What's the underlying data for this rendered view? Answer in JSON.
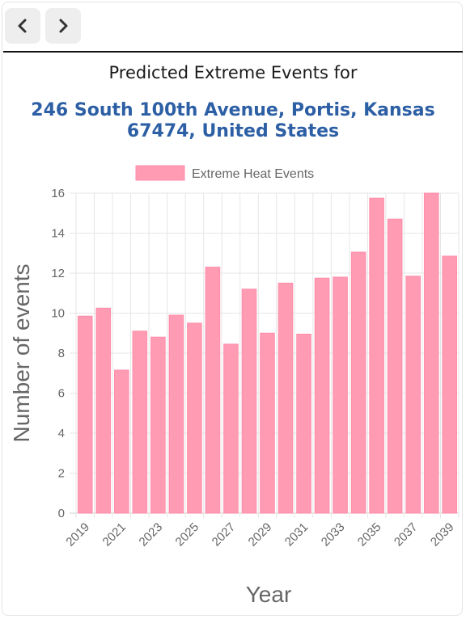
{
  "header": {
    "title": "Predicted Extreme Events for",
    "address": "246 South 100th Avenue, Portis, Kansas 67474, United States"
  },
  "icons": {
    "back": "chevron-left-icon",
    "forward": "chevron-right-icon"
  },
  "colors": {
    "bar_fill": "#ff9bb3",
    "bar_stroke": "#ff8eab",
    "address": "#2d5fa5"
  },
  "chart_data": {
    "type": "bar",
    "legend": "Extreme Heat Events",
    "legend_position": "top",
    "xlabel": "Year",
    "ylabel": "Number of events",
    "ylim": [
      0,
      16
    ],
    "yticks": [
      0,
      2,
      4,
      6,
      8,
      10,
      12,
      14,
      16
    ],
    "grid": true,
    "categories": [
      "2019",
      "2020",
      "2021",
      "2022",
      "2023",
      "2024",
      "2025",
      "2026",
      "2027",
      "2028",
      "2029",
      "2030",
      "2031",
      "2032",
      "2033",
      "2034",
      "2035",
      "2036",
      "2037",
      "2038",
      "2039"
    ],
    "xtick_labels": [
      "2019",
      "2021",
      "2023",
      "2025",
      "2027",
      "2029",
      "2031",
      "2033",
      "2035",
      "2037",
      "2039"
    ],
    "series": [
      {
        "name": "Extreme Heat Events",
        "values": [
          9.85,
          10.25,
          7.15,
          9.1,
          8.8,
          9.9,
          9.5,
          12.3,
          8.45,
          11.2,
          9.0,
          11.5,
          8.95,
          11.75,
          11.8,
          13.05,
          15.75,
          14.7,
          11.85,
          16.0,
          12.85
        ]
      }
    ]
  }
}
